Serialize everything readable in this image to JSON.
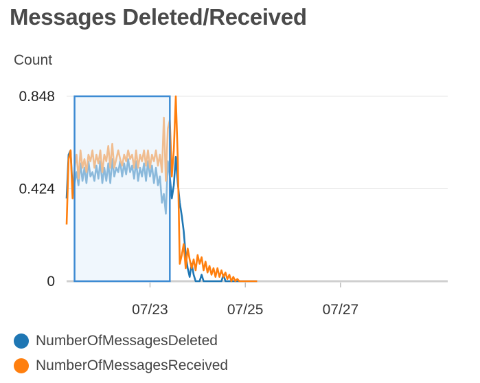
{
  "title": "Messages Deleted/Received",
  "chart_data": {
    "type": "line",
    "ylabel": "Count",
    "y_ticks": [
      "0.848",
      "0.424",
      "0"
    ],
    "ylim": [
      0,
      0.848
    ],
    "xlim": [
      "07/21 06:00",
      "07/29 06:00"
    ],
    "x_ticks": [
      {
        "label": "07/23",
        "x": "07/23 00:00"
      },
      {
        "label": "07/25",
        "x": "07/25 00:00"
      },
      {
        "label": "07/27",
        "x": "07/27 00:00"
      }
    ],
    "grid": true,
    "legend_position": "bottom",
    "highlight_range": [
      "07/21 10:00",
      "07/23 10:00"
    ],
    "series": [
      {
        "name": "NumberOfMessagesDeleted",
        "color": "#1f77b4",
        "points": [
          [
            "07/21 06:00",
            0.38
          ],
          [
            "07/21 07:00",
            0.58
          ],
          [
            "07/21 08:00",
            0.6
          ],
          [
            "07/21 09:00",
            0.42
          ],
          [
            "07/21 10:00",
            0.45
          ],
          [
            "07/21 11:00",
            0.5
          ],
          [
            "07/21 12:00",
            0.44
          ],
          [
            "07/21 13:00",
            0.54
          ],
          [
            "07/21 14:00",
            0.46
          ],
          [
            "07/21 15:00",
            0.52
          ],
          [
            "07/21 16:00",
            0.45
          ],
          [
            "07/21 17:00",
            0.55
          ],
          [
            "07/21 18:00",
            0.48
          ],
          [
            "07/21 19:00",
            0.5
          ],
          [
            "07/21 20:00",
            0.46
          ],
          [
            "07/21 21:00",
            0.53
          ],
          [
            "07/21 22:00",
            0.47
          ],
          [
            "07/21 23:00",
            0.55
          ],
          [
            "07/22 00:00",
            0.45
          ],
          [
            "07/22 01:00",
            0.52
          ],
          [
            "07/22 02:00",
            0.46
          ],
          [
            "07/22 03:00",
            0.54
          ],
          [
            "07/22 04:00",
            0.45
          ],
          [
            "07/22 05:00",
            0.56
          ],
          [
            "07/22 06:00",
            0.48
          ],
          [
            "07/22 07:00",
            0.52
          ],
          [
            "07/22 08:00",
            0.5
          ],
          [
            "07/22 09:00",
            0.55
          ],
          [
            "07/22 10:00",
            0.48
          ],
          [
            "07/22 11:00",
            0.54
          ],
          [
            "07/22 12:00",
            0.49
          ],
          [
            "07/22 13:00",
            0.56
          ],
          [
            "07/22 14:00",
            0.5
          ],
          [
            "07/22 15:00",
            0.53
          ],
          [
            "07/22 16:00",
            0.47
          ],
          [
            "07/22 17:00",
            0.55
          ],
          [
            "07/22 18:00",
            0.46
          ],
          [
            "07/22 19:00",
            0.52
          ],
          [
            "07/22 20:00",
            0.48
          ],
          [
            "07/22 21:00",
            0.54
          ],
          [
            "07/22 22:00",
            0.46
          ],
          [
            "07/22 23:00",
            0.55
          ],
          [
            "07/23 00:00",
            0.48
          ],
          [
            "07/23 01:00",
            0.53
          ],
          [
            "07/23 02:00",
            0.45
          ],
          [
            "07/23 03:00",
            0.52
          ],
          [
            "07/23 04:00",
            0.44
          ],
          [
            "07/23 05:00",
            0.48
          ],
          [
            "07/23 06:00",
            0.36
          ],
          [
            "07/23 07:00",
            0.4
          ],
          [
            "07/23 08:00",
            0.31
          ],
          [
            "07/23 09:00",
            0.55
          ],
          [
            "07/23 10:00",
            0.48
          ],
          [
            "07/23 11:00",
            0.38
          ],
          [
            "07/23 12:00",
            0.44
          ],
          [
            "07/23 13:00",
            0.57
          ],
          [
            "07/23 14:00",
            0.45
          ],
          [
            "07/23 15:00",
            0.36
          ],
          [
            "07/23 16:00",
            0.3
          ],
          [
            "07/23 17:00",
            0.23
          ],
          [
            "07/23 18:00",
            0.12
          ],
          [
            "07/23 19:00",
            0.06
          ],
          [
            "07/23 20:00",
            0.02
          ],
          [
            "07/23 21:00",
            0.08
          ],
          [
            "07/23 22:00",
            0.03
          ],
          [
            "07/23 23:00",
            0.0
          ],
          [
            "07/24 00:00",
            0.0
          ],
          [
            "07/24 01:00",
            0.0
          ],
          [
            "07/24 02:00",
            0.03
          ],
          [
            "07/24 03:00",
            0.0
          ],
          [
            "07/24 04:00",
            0.0
          ],
          [
            "07/24 05:00",
            0.0
          ],
          [
            "07/24 06:00",
            0.0
          ],
          [
            "07/24 07:00",
            0.0
          ],
          [
            "07/24 08:00",
            0.0
          ],
          [
            "07/24 09:00",
            0.0
          ],
          [
            "07/24 10:00",
            0.0
          ],
          [
            "07/24 11:00",
            0.0
          ],
          [
            "07/24 12:00",
            0.0
          ],
          [
            "07/24 13:00",
            0.03
          ],
          [
            "07/24 14:00",
            0.0
          ],
          [
            "07/24 15:00",
            0.0
          ],
          [
            "07/24 16:00",
            0.0
          ],
          [
            "07/24 17:00",
            0.0
          ],
          [
            "07/24 18:00",
            0.0
          ],
          [
            "07/24 19:00",
            0.0
          ],
          [
            "07/24 20:00",
            0.0
          ],
          [
            "07/24 21:00",
            0.0
          ],
          [
            "07/24 22:00",
            0.0
          ],
          [
            "07/24 23:00",
            0.0
          ],
          [
            "07/25 00:00",
            0.0
          ],
          [
            "07/25 01:00",
            0.0
          ],
          [
            "07/25 02:00",
            0.0
          ],
          [
            "07/25 03:00",
            0.0
          ],
          [
            "07/25 04:00",
            0.0
          ],
          [
            "07/25 05:00",
            0.0
          ],
          [
            "07/25 06:00",
            0.0
          ]
        ]
      },
      {
        "name": "NumberOfMessagesReceived",
        "color": "#ff7f0e",
        "points": [
          [
            "07/21 06:00",
            0.26
          ],
          [
            "07/21 07:00",
            0.56
          ],
          [
            "07/21 08:00",
            0.6
          ],
          [
            "07/21 09:00",
            0.38
          ],
          [
            "07/21 10:00",
            0.52
          ],
          [
            "07/21 11:00",
            0.58
          ],
          [
            "07/21 12:00",
            0.47
          ],
          [
            "07/21 13:00",
            0.6
          ],
          [
            "07/21 14:00",
            0.52
          ],
          [
            "07/21 15:00",
            0.56
          ],
          [
            "07/21 16:00",
            0.5
          ],
          [
            "07/21 17:00",
            0.58
          ],
          [
            "07/21 18:00",
            0.55
          ],
          [
            "07/21 19:00",
            0.6
          ],
          [
            "07/21 20:00",
            0.52
          ],
          [
            "07/21 21:00",
            0.58
          ],
          [
            "07/21 22:00",
            0.54
          ],
          [
            "07/21 23:00",
            0.6
          ],
          [
            "07/22 00:00",
            0.5
          ],
          [
            "07/22 01:00",
            0.58
          ],
          [
            "07/22 02:00",
            0.55
          ],
          [
            "07/22 03:00",
            0.62
          ],
          [
            "07/22 04:00",
            0.52
          ],
          [
            "07/22 05:00",
            0.63
          ],
          [
            "07/22 06:00",
            0.52
          ],
          [
            "07/22 07:00",
            0.56
          ],
          [
            "07/22 08:00",
            0.6
          ],
          [
            "07/22 09:00",
            0.56
          ],
          [
            "07/22 10:00",
            0.53
          ],
          [
            "07/22 11:00",
            0.58
          ],
          [
            "07/22 12:00",
            0.55
          ],
          [
            "07/22 13:00",
            0.6
          ],
          [
            "07/22 14:00",
            0.56
          ],
          [
            "07/22 15:00",
            0.58
          ],
          [
            "07/22 16:00",
            0.52
          ],
          [
            "07/22 17:00",
            0.6
          ],
          [
            "07/22 18:00",
            0.52
          ],
          [
            "07/22 19:00",
            0.58
          ],
          [
            "07/22 20:00",
            0.55
          ],
          [
            "07/22 21:00",
            0.6
          ],
          [
            "07/22 22:00",
            0.53
          ],
          [
            "07/22 23:00",
            0.6
          ],
          [
            "07/23 00:00",
            0.52
          ],
          [
            "07/23 01:00",
            0.58
          ],
          [
            "07/23 02:00",
            0.55
          ],
          [
            "07/23 03:00",
            0.6
          ],
          [
            "07/23 04:00",
            0.53
          ],
          [
            "07/23 05:00",
            0.58
          ],
          [
            "07/23 06:00",
            0.5
          ],
          [
            "07/23 07:00",
            0.75
          ],
          [
            "07/23 08:00",
            0.46
          ],
          [
            "07/23 09:00",
            0.7
          ],
          [
            "07/23 10:00",
            0.74
          ],
          [
            "07/23 11:00",
            0.48
          ],
          [
            "07/23 12:00",
            0.6
          ],
          [
            "07/23 13:00",
            0.848
          ],
          [
            "07/23 14:00",
            0.56
          ],
          [
            "07/23 15:00",
            0.08
          ],
          [
            "07/23 16:00",
            0.12
          ],
          [
            "07/23 17:00",
            0.17
          ],
          [
            "07/23 18:00",
            0.06
          ],
          [
            "07/23 19:00",
            0.15
          ],
          [
            "07/23 20:00",
            0.1
          ],
          [
            "07/23 21:00",
            0.06
          ],
          [
            "07/23 22:00",
            0.1
          ],
          [
            "07/23 23:00",
            0.05
          ],
          [
            "07/24 00:00",
            0.12
          ],
          [
            "07/24 01:00",
            0.08
          ],
          [
            "07/24 02:00",
            0.11
          ],
          [
            "07/24 03:00",
            0.05
          ],
          [
            "07/24 04:00",
            0.09
          ],
          [
            "07/24 05:00",
            0.04
          ],
          [
            "07/24 06:00",
            0.07
          ],
          [
            "07/24 07:00",
            0.03
          ],
          [
            "07/24 08:00",
            0.06
          ],
          [
            "07/24 09:00",
            0.02
          ],
          [
            "07/24 10:00",
            0.06
          ],
          [
            "07/24 11:00",
            0.02
          ],
          [
            "07/24 12:00",
            0.05
          ],
          [
            "07/24 13:00",
            0.02
          ],
          [
            "07/24 14:00",
            0.04
          ],
          [
            "07/24 15:00",
            0.01
          ],
          [
            "07/24 16:00",
            0.03
          ],
          [
            "07/24 17:00",
            0.0
          ],
          [
            "07/24 18:00",
            0.02
          ],
          [
            "07/24 19:00",
            0.0
          ],
          [
            "07/24 20:00",
            0.01
          ],
          [
            "07/24 21:00",
            0.0
          ],
          [
            "07/24 22:00",
            0.0
          ],
          [
            "07/24 23:00",
            0.0
          ],
          [
            "07/25 00:00",
            0.0
          ],
          [
            "07/25 01:00",
            0.0
          ],
          [
            "07/25 02:00",
            0.0
          ],
          [
            "07/25 03:00",
            0.0
          ],
          [
            "07/25 04:00",
            0.0
          ],
          [
            "07/25 05:00",
            0.0
          ],
          [
            "07/25 06:00",
            0.0
          ]
        ]
      }
    ]
  }
}
